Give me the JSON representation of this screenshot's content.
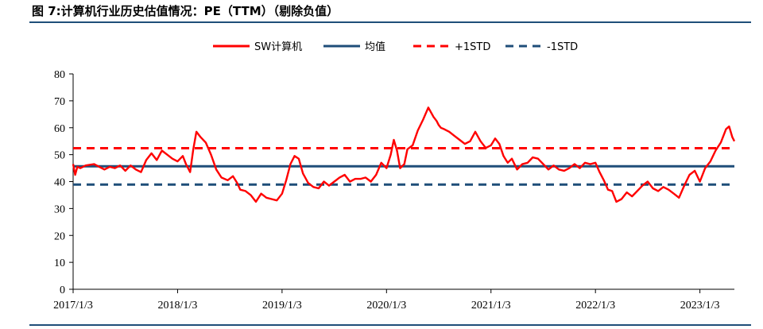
{
  "figure": {
    "title": "图 7:计算机行业历史估值情况：PE（TTM）（剔除负值）"
  },
  "colors": {
    "pe_line": "#ff0000",
    "mean_line": "#1f4e79",
    "plus_std": "#ff0000",
    "minus_std": "#1f4e79",
    "axis": "#000000"
  },
  "chart_data": {
    "type": "line",
    "title": "",
    "xlabel": "",
    "ylabel": "",
    "ylim": [
      0,
      80
    ],
    "yticks": [
      0,
      10,
      20,
      30,
      40,
      50,
      60,
      70,
      80
    ],
    "x_range": [
      2017.0,
      2023.33
    ],
    "xtick_labels": [
      {
        "x": 2017.0,
        "label": "2017/1/3"
      },
      {
        "x": 2018.0,
        "label": "2018/1/3"
      },
      {
        "x": 2019.0,
        "label": "2019/1/3"
      },
      {
        "x": 2020.0,
        "label": "2020/1/3"
      },
      {
        "x": 2021.0,
        "label": "2021/1/3"
      },
      {
        "x": 2022.0,
        "label": "2022/1/3"
      },
      {
        "x": 2023.0,
        "label": "2023/1/3"
      }
    ],
    "legend": [
      {
        "name": "SW计算机",
        "style": "solid",
        "color": "#ff0000"
      },
      {
        "name": "均值",
        "style": "solid",
        "color": "#1f4e79"
      },
      {
        "name": "+1STD",
        "style": "dashed",
        "color": "#ff0000"
      },
      {
        "name": "-1STD",
        "style": "dashed",
        "color": "#1f4e79"
      }
    ],
    "legend_position": "top-center",
    "reference_lines": {
      "mean": 45.7,
      "plus_1std": 52.4,
      "minus_1std": 38.9
    },
    "series": [
      {
        "name": "SW计算机",
        "x": [
          2017.0,
          2017.02,
          2017.04,
          2017.07,
          2017.12,
          2017.2,
          2017.25,
          2017.3,
          2017.35,
          2017.4,
          2017.45,
          2017.5,
          2017.55,
          2017.6,
          2017.65,
          2017.7,
          2017.75,
          2017.8,
          2017.85,
          2017.9,
          2017.95,
          2018.0,
          2018.05,
          2018.08,
          2018.12,
          2018.15,
          2018.18,
          2018.22,
          2018.27,
          2018.32,
          2018.37,
          2018.42,
          2018.48,
          2018.53,
          2018.57,
          2018.6,
          2018.65,
          2018.7,
          2018.75,
          2018.8,
          2018.85,
          2018.9,
          2018.95,
          2019.0,
          2019.04,
          2019.08,
          2019.12,
          2019.16,
          2019.2,
          2019.25,
          2019.3,
          2019.35,
          2019.4,
          2019.45,
          2019.5,
          2019.55,
          2019.6,
          2019.65,
          2019.7,
          2019.75,
          2019.8,
          2019.85,
          2019.9,
          2019.95,
          2020.0,
          2020.04,
          2020.07,
          2020.1,
          2020.13,
          2020.17,
          2020.2,
          2020.25,
          2020.3,
          2020.35,
          2020.4,
          2020.45,
          2020.48,
          2020.5,
          2020.52,
          2020.55,
          2020.6,
          2020.65,
          2020.7,
          2020.75,
          2020.8,
          2020.85,
          2020.9,
          2020.95,
          2021.0,
          2021.04,
          2021.08,
          2021.12,
          2021.16,
          2021.2,
          2021.25,
          2021.3,
          2021.35,
          2021.4,
          2021.45,
          2021.5,
          2021.55,
          2021.6,
          2021.65,
          2021.7,
          2021.75,
          2021.8,
          2021.85,
          2021.9,
          2021.95,
          2022.0,
          2022.04,
          2022.08,
          2022.12,
          2022.16,
          2022.2,
          2022.25,
          2022.3,
          2022.35,
          2022.4,
          2022.45,
          2022.5,
          2022.55,
          2022.6,
          2022.65,
          2022.7,
          2022.75,
          2022.8,
          2022.85,
          2022.9,
          2022.95,
          2023.0,
          2023.05,
          2023.1,
          2023.15,
          2023.2,
          2023.25,
          2023.28,
          2023.31,
          2023.33
        ],
        "values": [
          46.5,
          42.5,
          45.5,
          45.0,
          46.0,
          46.5,
          45.5,
          44.5,
          45.5,
          45.0,
          46.0,
          44.0,
          46.0,
          44.5,
          43.5,
          48.0,
          50.5,
          48.0,
          51.5,
          50.0,
          48.5,
          47.5,
          49.5,
          46.5,
          43.5,
          52.0,
          58.5,
          56.5,
          54.5,
          50.0,
          44.5,
          41.5,
          40.5,
          42.0,
          39.5,
          37.0,
          36.5,
          35.0,
          32.5,
          35.5,
          34.0,
          33.5,
          33.0,
          35.5,
          40.5,
          46.5,
          49.5,
          48.5,
          43.0,
          39.5,
          38.0,
          37.5,
          40.0,
          38.5,
          40.0,
          41.5,
          42.5,
          40.0,
          41.0,
          41.0,
          41.5,
          40.0,
          42.5,
          47.0,
          45.0,
          50.0,
          55.5,
          51.5,
          45.0,
          46.5,
          52.0,
          53.5,
          59.0,
          63.0,
          67.5,
          64.0,
          62.5,
          61.0,
          60.0,
          59.5,
          58.5,
          57.0,
          55.5,
          54.0,
          55.0,
          58.5,
          55.0,
          52.5,
          53.5,
          56.0,
          54.0,
          49.5,
          47.0,
          48.5,
          44.5,
          46.5,
          47.0,
          49.0,
          48.5,
          46.5,
          44.5,
          46.0,
          44.5,
          44.0,
          45.0,
          46.5,
          45.0,
          47.0,
          46.5,
          47.0,
          43.5,
          40.5,
          37.0,
          36.5,
          32.5,
          33.5,
          36.0,
          34.5,
          36.5,
          38.5,
          40.0,
          37.5,
          36.5,
          38.0,
          37.0,
          35.5,
          34.0,
          38.5,
          42.5,
          44.0,
          40.0,
          45.0,
          47.5,
          51.5,
          54.5,
          59.5,
          60.5,
          56.5,
          55.0
        ]
      }
    ]
  }
}
